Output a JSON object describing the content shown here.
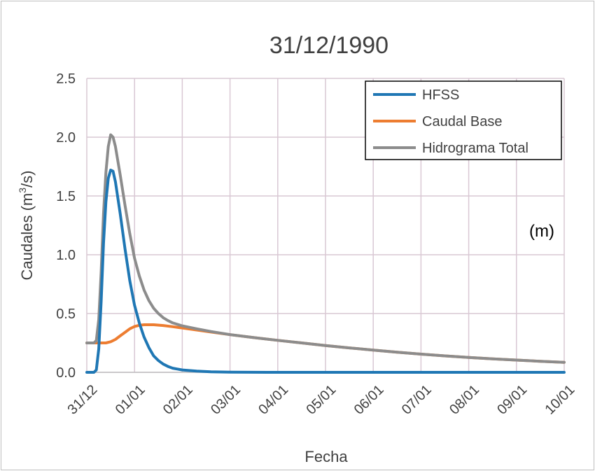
{
  "chart_data": {
    "type": "line",
    "title": "31/12/1990",
    "xlabel": "Fecha",
    "ylabel_main": "Caudales (m",
    "ylabel_sup": "3",
    "ylabel_end": "/s)",
    "annotation": "(m)",
    "x_ticks": [
      "31/12",
      "01/01",
      "02/01",
      "03/01",
      "04/01",
      "05/01",
      "06/01",
      "07/01",
      "08/01",
      "09/01",
      "10/01"
    ],
    "xlim": [
      0,
      10
    ],
    "ylim": [
      0,
      2.5
    ],
    "y_ticks": [
      0.0,
      0.5,
      1.0,
      1.5,
      2.0,
      2.5
    ],
    "y_tick_labels": [
      "0.0",
      "0.5",
      "1.0",
      "1.5",
      "2.0",
      "2.5"
    ],
    "grid": true,
    "legend_position": "top-right",
    "series": [
      {
        "name": "HFSS",
        "color": "#1f77b4",
        "points": [
          [
            0,
            0
          ],
          [
            0.1,
            0
          ],
          [
            0.15,
            0
          ],
          [
            0.2,
            0.02
          ],
          [
            0.25,
            0.2
          ],
          [
            0.3,
            0.6
          ],
          [
            0.35,
            1.1
          ],
          [
            0.4,
            1.45
          ],
          [
            0.45,
            1.65
          ],
          [
            0.5,
            1.72
          ],
          [
            0.55,
            1.71
          ],
          [
            0.6,
            1.62
          ],
          [
            0.7,
            1.35
          ],
          [
            0.8,
            1.05
          ],
          [
            0.9,
            0.78
          ],
          [
            1.0,
            0.57
          ],
          [
            1.1,
            0.42
          ],
          [
            1.2,
            0.3
          ],
          [
            1.3,
            0.21
          ],
          [
            1.4,
            0.14
          ],
          [
            1.5,
            0.1
          ],
          [
            1.6,
            0.07
          ],
          [
            1.7,
            0.05
          ],
          [
            1.8,
            0.035
          ],
          [
            2.0,
            0.02
          ],
          [
            2.3,
            0.01
          ],
          [
            2.6,
            0.004
          ],
          [
            3.0,
            0.001
          ],
          [
            4,
            0
          ],
          [
            5,
            0
          ],
          [
            6,
            0
          ],
          [
            7,
            0
          ],
          [
            8,
            0
          ],
          [
            9,
            0
          ],
          [
            10,
            0
          ]
        ]
      },
      {
        "name": "Caudal Base",
        "color": "#ed7d31",
        "points": [
          [
            0,
            0.25
          ],
          [
            0.2,
            0.25
          ],
          [
            0.4,
            0.25
          ],
          [
            0.5,
            0.26
          ],
          [
            0.6,
            0.28
          ],
          [
            0.7,
            0.31
          ],
          [
            0.8,
            0.34
          ],
          [
            0.9,
            0.37
          ],
          [
            1.0,
            0.39
          ],
          [
            1.1,
            0.4
          ],
          [
            1.2,
            0.405
          ],
          [
            1.4,
            0.405
          ],
          [
            1.6,
            0.398
          ],
          [
            1.8,
            0.388
          ],
          [
            2.0,
            0.377
          ],
          [
            2.3,
            0.36
          ],
          [
            2.6,
            0.343
          ],
          [
            3.0,
            0.32
          ],
          [
            3.5,
            0.295
          ],
          [
            4.0,
            0.272
          ],
          [
            4.5,
            0.25
          ],
          [
            5.0,
            0.228
          ],
          [
            5.5,
            0.208
          ],
          [
            6.0,
            0.189
          ],
          [
            6.5,
            0.171
          ],
          [
            7.0,
            0.155
          ],
          [
            7.5,
            0.14
          ],
          [
            8.0,
            0.127
          ],
          [
            8.5,
            0.115
          ],
          [
            9.0,
            0.104
          ],
          [
            9.5,
            0.094
          ],
          [
            10.0,
            0.085
          ]
        ]
      },
      {
        "name": "Hidrograma Total",
        "color": "#8c8c8c",
        "points": [
          [
            0,
            0.25
          ],
          [
            0.1,
            0.25
          ],
          [
            0.15,
            0.25
          ],
          [
            0.2,
            0.27
          ],
          [
            0.25,
            0.45
          ],
          [
            0.3,
            0.85
          ],
          [
            0.35,
            1.35
          ],
          [
            0.4,
            1.7
          ],
          [
            0.45,
            1.92
          ],
          [
            0.5,
            2.02
          ],
          [
            0.55,
            2.0
          ],
          [
            0.6,
            1.92
          ],
          [
            0.7,
            1.68
          ],
          [
            0.8,
            1.42
          ],
          [
            0.9,
            1.18
          ],
          [
            1.0,
            0.97
          ],
          [
            1.1,
            0.82
          ],
          [
            1.2,
            0.7
          ],
          [
            1.3,
            0.61
          ],
          [
            1.4,
            0.545
          ],
          [
            1.5,
            0.5
          ],
          [
            1.6,
            0.465
          ],
          [
            1.7,
            0.44
          ],
          [
            1.8,
            0.42
          ],
          [
            2.0,
            0.395
          ],
          [
            2.3,
            0.37
          ],
          [
            2.6,
            0.347
          ],
          [
            3.0,
            0.321
          ],
          [
            3.5,
            0.295
          ],
          [
            4.0,
            0.272
          ],
          [
            4.5,
            0.25
          ],
          [
            5.0,
            0.228
          ],
          [
            5.5,
            0.208
          ],
          [
            6.0,
            0.189
          ],
          [
            6.5,
            0.171
          ],
          [
            7.0,
            0.155
          ],
          [
            7.5,
            0.14
          ],
          [
            8.0,
            0.127
          ],
          [
            8.5,
            0.115
          ],
          [
            9.0,
            0.104
          ],
          [
            9.5,
            0.094
          ],
          [
            10.0,
            0.085
          ]
        ]
      }
    ]
  }
}
